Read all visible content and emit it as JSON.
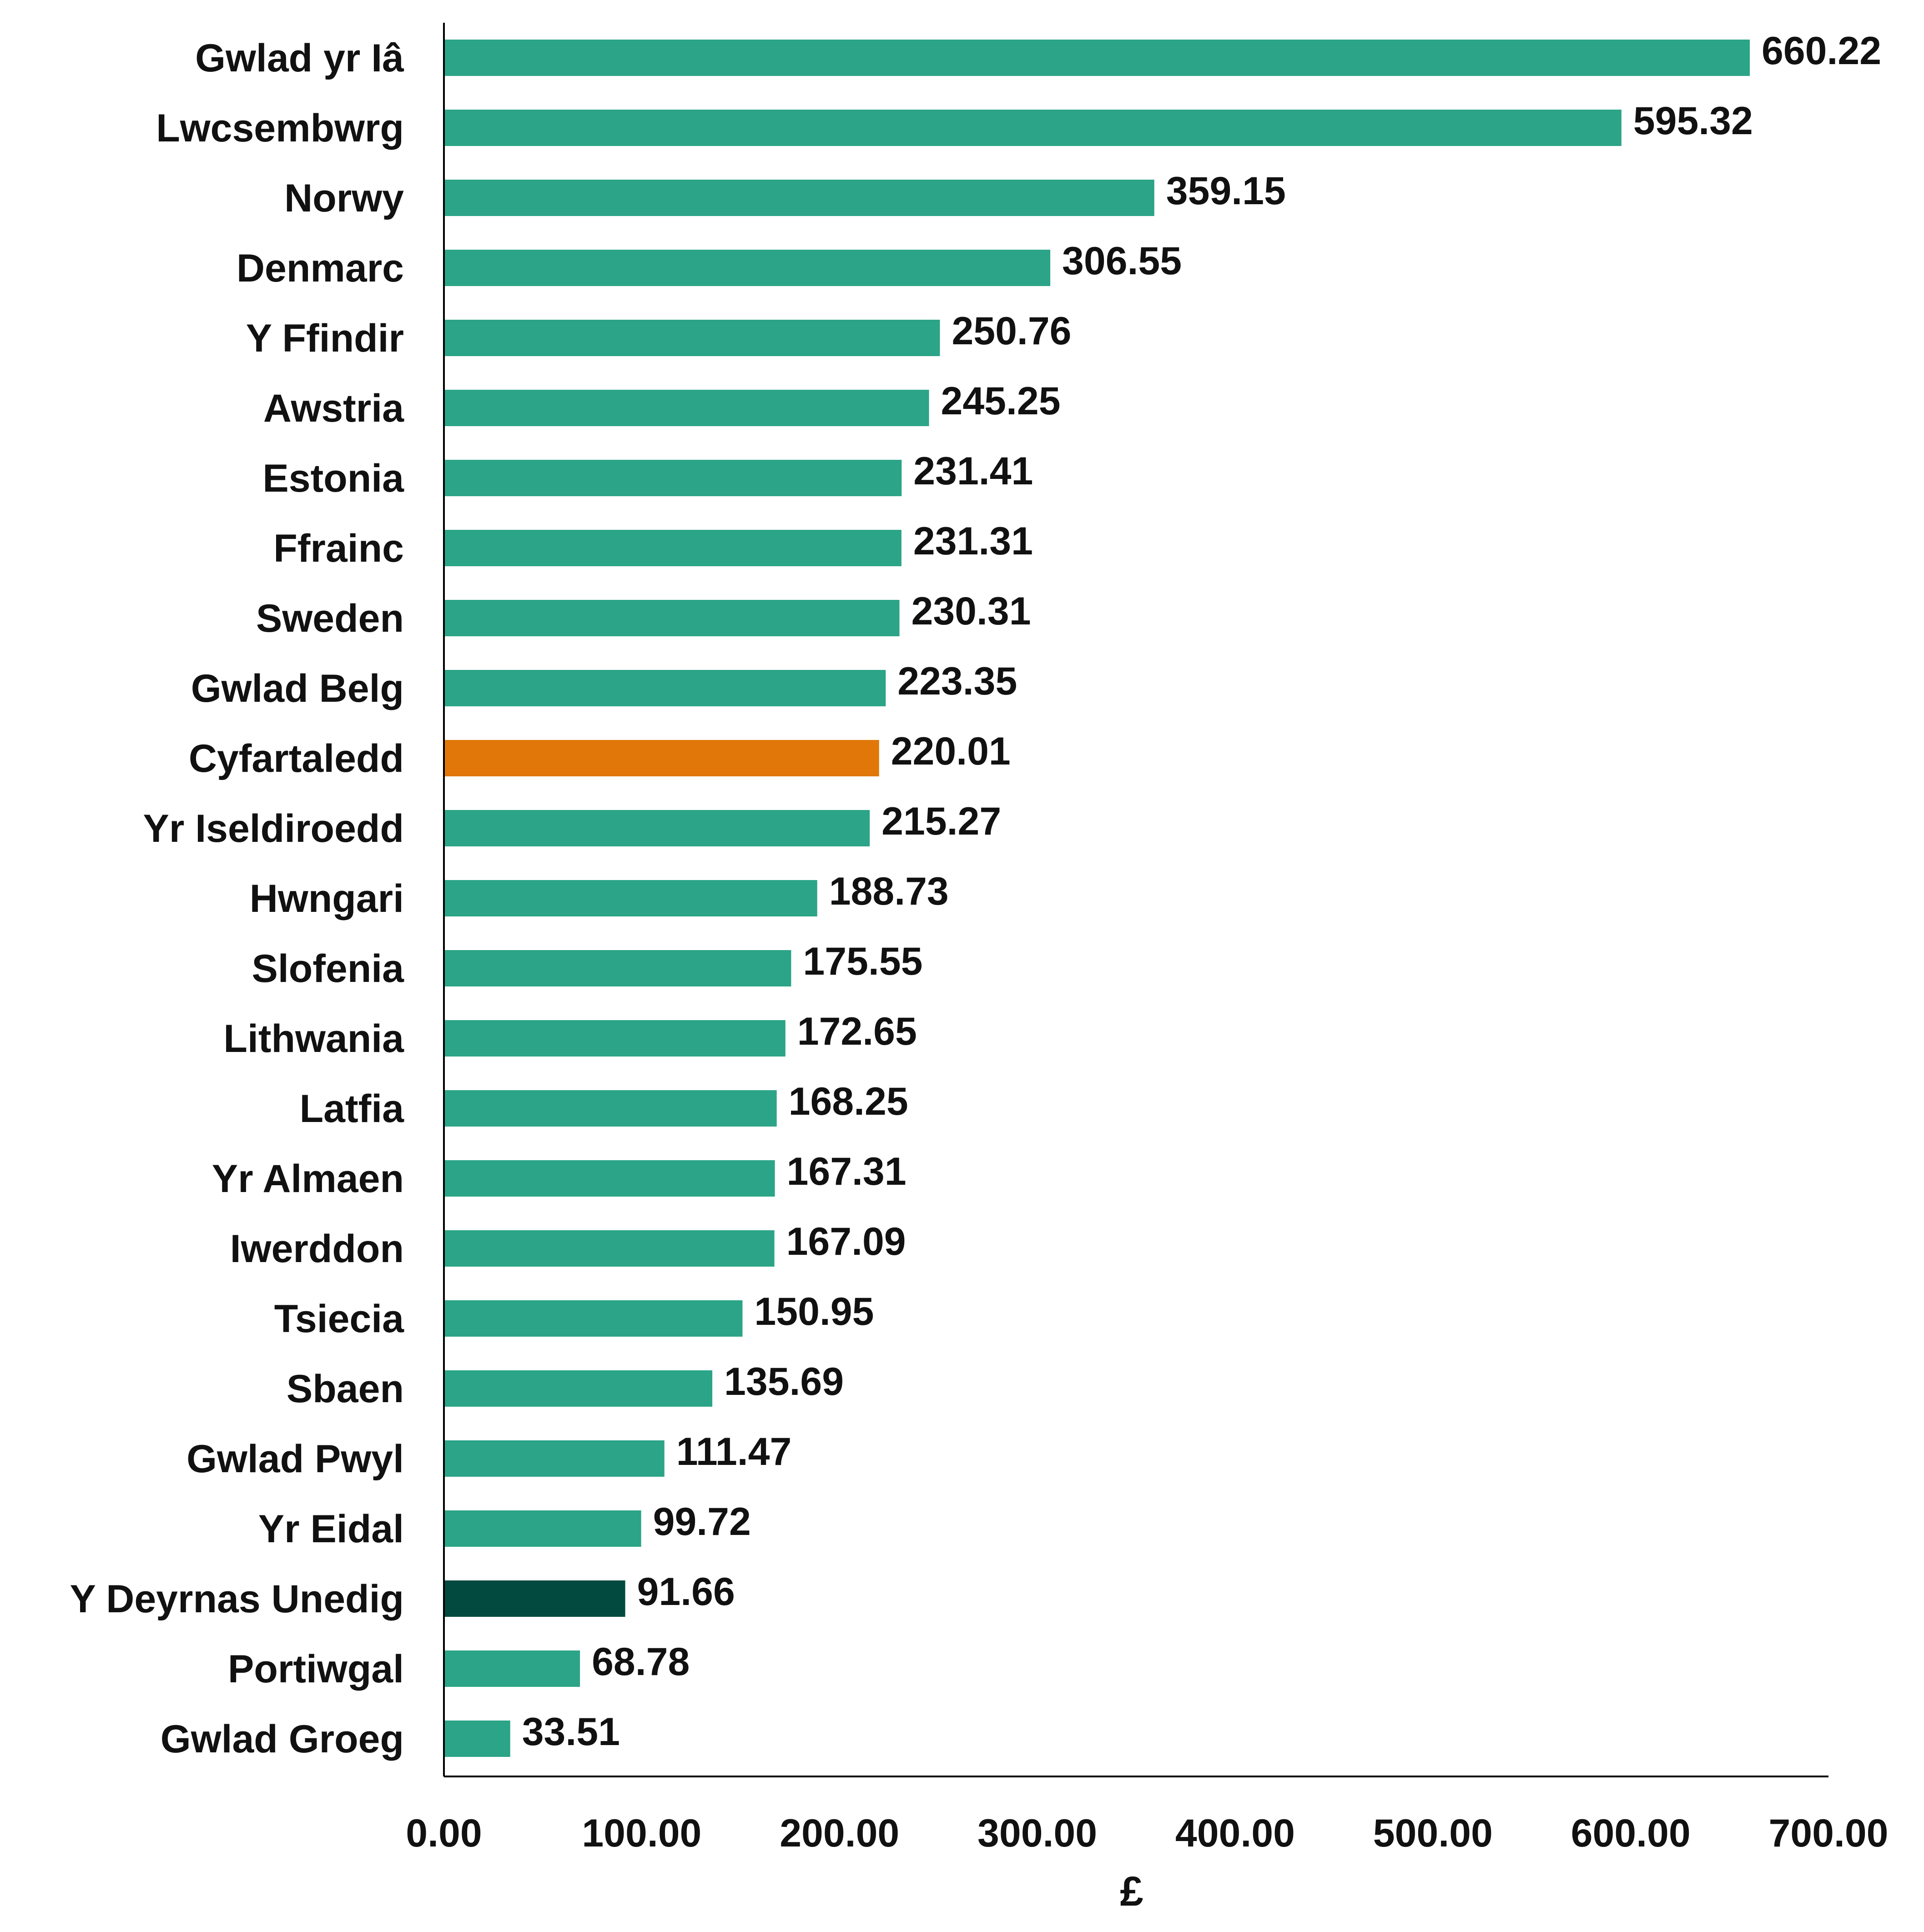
{
  "chart_data": {
    "type": "bar",
    "orientation": "horizontal",
    "title": "",
    "xlabel": "£",
    "ylabel": "",
    "xlim": [
      0,
      700
    ],
    "x_ticks": [
      "0.00",
      "100.00",
      "200.00",
      "300.00",
      "400.00",
      "500.00",
      "600.00",
      "700.00"
    ],
    "grid": false,
    "legend": "none",
    "colors": {
      "default": "#2ba487",
      "average": "#e07708",
      "uk": "#024a40"
    },
    "categories": [
      "Gwlad yr Iâ",
      "Lwcsembwrg",
      "Norwy",
      "Denmarc",
      "Y Ffindir",
      "Awstria",
      "Estonia",
      "Ffrainc",
      "Sweden",
      "Gwlad Belg",
      "Cyfartaledd",
      "Yr Iseldiroedd",
      "Hwngari",
      "Slofenia",
      "Lithwania",
      "Latfia",
      "Yr Almaen",
      "Iwerddon",
      "Tsiecia",
      "Sbaen",
      "Gwlad Pwyl",
      "Yr Eidal",
      "Y Deyrnas Unedig",
      "Portiwgal",
      "Gwlad Groeg"
    ],
    "values": [
      660.22,
      595.32,
      359.15,
      306.55,
      250.76,
      245.25,
      231.41,
      231.31,
      230.31,
      223.35,
      220.01,
      215.27,
      188.73,
      175.55,
      172.65,
      168.25,
      167.31,
      167.09,
      150.95,
      135.69,
      111.47,
      99.72,
      91.66,
      68.78,
      33.51
    ],
    "value_labels": [
      "660.22",
      "595.32",
      "359.15",
      "306.55",
      "250.76",
      "245.25",
      "231.41",
      "231.31",
      "230.31",
      "223.35",
      "220.01",
      "215.27",
      "188.73",
      "175.55",
      "172.65",
      "168.25",
      "167.31",
      "167.09",
      "150.95",
      "135.69",
      "111.47",
      "99.72",
      "91.66",
      "68.78",
      "33.51"
    ],
    "highlight": {
      "Cyfartaledd": "average",
      "Y Deyrnas Unedig": "uk"
    }
  }
}
